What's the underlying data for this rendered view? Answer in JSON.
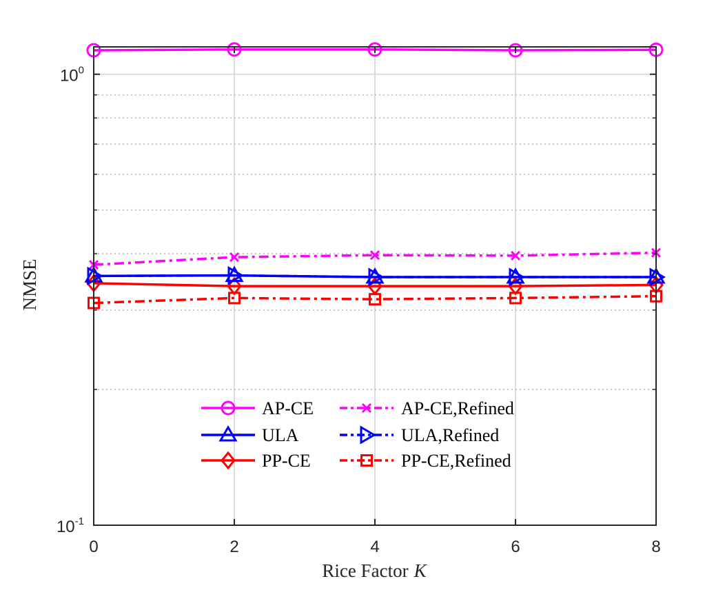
{
  "chart_data": {
    "type": "line",
    "title": "",
    "xlabel": "Rice Factor",
    "xlabel_symbol": "K",
    "ylabel": "NMSE",
    "yscale": "log",
    "ylim": [
      0.1,
      1.15
    ],
    "xlim": [
      0,
      8
    ],
    "x": [
      0,
      2,
      4,
      6,
      8
    ],
    "x_tick_labels": [
      "0",
      "2",
      "4",
      "6",
      "8"
    ],
    "y_ticks": [
      {
        "value": 0.1,
        "base": "10",
        "exp": "-1"
      },
      {
        "value": 1,
        "base": "10",
        "exp": "0"
      }
    ],
    "grid": true,
    "legend_position": "lower-center",
    "series": [
      {
        "name": "AP-CE",
        "color": "#ff00ff",
        "marker": "circle",
        "line": "solid",
        "values": [
          1.13,
          1.135,
          1.135,
          1.13,
          1.133
        ]
      },
      {
        "name": "AP-CE,Refined",
        "color": "#ff00ff",
        "marker": "x",
        "line": "dashdot",
        "values": [
          0.378,
          0.393,
          0.397,
          0.396,
          0.402
        ]
      },
      {
        "name": "ULA",
        "color": "#0000ff",
        "marker": "triangle-up",
        "line": "solid",
        "values": [
          0.357,
          0.358,
          0.355,
          0.355,
          0.355
        ]
      },
      {
        "name": "ULA,Refined",
        "color": "#0000ff",
        "marker": "triangle-right",
        "line": "dashdot",
        "values": [
          0.357,
          0.358,
          0.355,
          0.355,
          0.355
        ]
      },
      {
        "name": "PP-CE",
        "color": "#ff0000",
        "marker": "diamond",
        "line": "solid",
        "values": [
          0.344,
          0.339,
          0.339,
          0.339,
          0.341
        ]
      },
      {
        "name": "PP-CE,Refined",
        "color": "#ff0000",
        "marker": "square",
        "line": "dashdot",
        "values": [
          0.311,
          0.319,
          0.317,
          0.319,
          0.322
        ]
      }
    ],
    "legend_order": [
      "AP-CE",
      "AP-CE,Refined",
      "ULA",
      "ULA,Refined",
      "PP-CE",
      "PP-CE,Refined"
    ]
  }
}
